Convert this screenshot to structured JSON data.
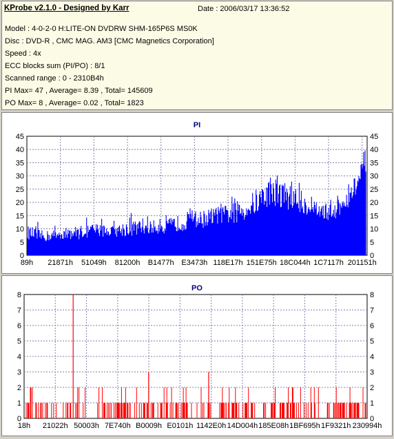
{
  "info": {
    "app_title": "KProbe v2.1.0 - Designed by Karr",
    "date": "Date : 2006/03/17 13:36:52",
    "model": "Model : 4-0-2-0 H:LITE-ON DVDRW SHM-165P6S MS0K",
    "disc": "Disc : DVD-R , CMC MAG. AM3 [CMC Magnetics Corporation]",
    "speed": "Speed : 4x",
    "ecc": "ECC blocks sum (PI/PO) : 8/1",
    "scanned": "Scanned range : 0 - 2310B4h",
    "pi_stats": "PI Max= 47 , Average= 8.39 , Total= 145609",
    "po_stats": "PO Max= 8 , Average= 0.02 , Total= 1823"
  },
  "colors": {
    "pi": "#0000ff",
    "po": "#ff0000",
    "grid": "#8080b0",
    "title": "#000080"
  },
  "chart_data": [
    {
      "type": "bar",
      "title": "PI",
      "ylim": [
        0,
        45
      ],
      "y_ticks": [
        "0",
        "5",
        "10",
        "15",
        "20",
        "25",
        "30",
        "35",
        "40",
        "45"
      ],
      "x_tick_labels": [
        "89h",
        "21871h",
        "51049h",
        "81200h",
        "B1477h",
        "E3473h",
        "118E17h",
        "151E75h",
        "18C044h",
        "1C7117h",
        "201151h"
      ],
      "grid": true,
      "envelope_x": [
        0,
        0.05,
        0.1,
        0.15,
        0.2,
        0.25,
        0.3,
        0.35,
        0.4,
        0.45,
        0.5,
        0.55,
        0.6,
        0.65,
        0.7,
        0.72,
        0.75,
        0.8,
        0.85,
        0.9,
        0.93,
        0.96,
        0.98,
        1.0
      ],
      "envelope_peak": [
        11,
        9,
        10,
        11,
        12,
        11,
        13,
        13,
        13,
        15,
        16,
        18,
        19,
        22,
        27,
        30,
        28,
        25,
        20,
        19,
        22,
        28,
        32,
        40
      ],
      "envelope_base": [
        6,
        5,
        6,
        6,
        7,
        7,
        7,
        8,
        8,
        9,
        10,
        11,
        12,
        13,
        17,
        19,
        18,
        16,
        14,
        13,
        15,
        20,
        24,
        30
      ]
    },
    {
      "type": "bar",
      "title": "PO",
      "ylim": [
        0,
        8
      ],
      "y_ticks": [
        "0",
        "1",
        "2",
        "3",
        "4",
        "5",
        "6",
        "7",
        "8"
      ],
      "x_tick_labels": [
        "18h",
        "21022h",
        "50003h",
        "7E740h",
        "B0009h",
        "E0101h",
        "1142E0h",
        "14D004h",
        "185E08h",
        "1BF695h",
        "1F9321h",
        "230994h"
      ],
      "grid": true,
      "spikes": [
        {
          "x": 0.143,
          "value": 8
        },
        {
          "x": 0.363,
          "value": 3
        },
        {
          "x": 0.538,
          "value": 3
        }
      ]
    }
  ]
}
